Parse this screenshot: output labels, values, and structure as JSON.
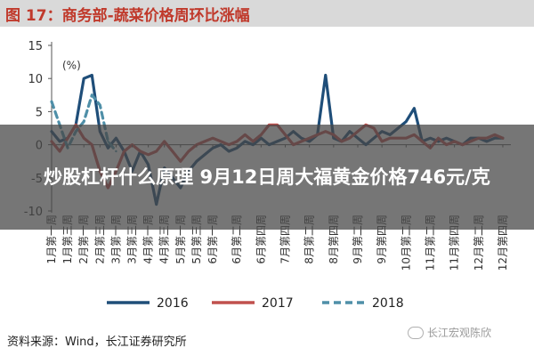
{
  "header": {
    "title": "图 17：商务部-蔬菜价格周环比涨幅"
  },
  "overlay": {
    "headline": "炒股杠杆什么原理 9月12日周大福黄金价格746元/克"
  },
  "footer": {
    "source": "资料来源：Wind，长江证券研究所",
    "watermark": "长江宏观陈欣"
  },
  "chart_data": {
    "type": "line",
    "unit_label": "(%)",
    "ylim": [
      -10,
      15
    ],
    "yticks": [
      15,
      10,
      5,
      0,
      -5,
      -10
    ],
    "ytick_labels": [
      "15",
      "10",
      "5",
      "0",
      "-5",
      "-10"
    ],
    "x": [
      0,
      1,
      2,
      3,
      4,
      5,
      6,
      7,
      8,
      9,
      10,
      11,
      12,
      13,
      14,
      15,
      16,
      17,
      18,
      19,
      20,
      21,
      22,
      23,
      24,
      25,
      26,
      27,
      28,
      29,
      30,
      31,
      32,
      33,
      34,
      35,
      36,
      37,
      38,
      39,
      40,
      41,
      42,
      43,
      44,
      45,
      46,
      47,
      48,
      49,
      50,
      51
    ],
    "xtick_labels": [
      {
        "x": 0,
        "label": "1月第一周"
      },
      {
        "x": 2,
        "label": "1月第三周"
      },
      {
        "x": 4,
        "label": "2月第一周"
      },
      {
        "x": 6,
        "label": "2月第三周"
      },
      {
        "x": 8,
        "label": "3月第一周"
      },
      {
        "x": 10,
        "label": "3月第三周"
      },
      {
        "x": 12,
        "label": "4月第一周"
      },
      {
        "x": 14,
        "label": "4月第三周"
      },
      {
        "x": 16,
        "label": "5月第一周"
      },
      {
        "x": 18,
        "label": "5月第三周"
      },
      {
        "x": 20,
        "label": "6月第一周"
      },
      {
        "x": 23,
        "label": "6月第二周"
      },
      {
        "x": 26,
        "label": "6月第四周"
      },
      {
        "x": 29,
        "label": "7月第四周"
      },
      {
        "x": 32,
        "label": "8月第二周"
      },
      {
        "x": 35,
        "label": "8月第四周"
      },
      {
        "x": 38,
        "label": "9月第二周"
      },
      {
        "x": 41,
        "label": "9月第四周"
      },
      {
        "x": 44,
        "label": "10月第二周"
      },
      {
        "x": 47,
        "label": "11月第二周"
      },
      {
        "x": 50,
        "label": "11月第四周"
      },
      {
        "x": 53,
        "label": "12月第二周"
      },
      {
        "x": 56,
        "label": "12月第四周"
      }
    ],
    "xlim": [
      0,
      57
    ],
    "series": [
      {
        "name": "2016",
        "color": "#1f4e79",
        "dash": "solid",
        "x": [
          0,
          1,
          2,
          3,
          4,
          5,
          6,
          7,
          8,
          9,
          10,
          11,
          12,
          13,
          14,
          15,
          16,
          17,
          18,
          19,
          20,
          21,
          22,
          23,
          24,
          25,
          26,
          27,
          28,
          29,
          30,
          31,
          32,
          33,
          34,
          35,
          36,
          37,
          38,
          39,
          40,
          41,
          42,
          43,
          44,
          45,
          46,
          47,
          48,
          49,
          50,
          51,
          52,
          53,
          54,
          55,
          56
        ],
        "values": [
          2.0,
          0.5,
          1.0,
          3.0,
          10.0,
          10.5,
          2.0,
          -0.5,
          1.0,
          -1.0,
          -4.0,
          -1.0,
          -3.0,
          -9.0,
          -3.5,
          -5.0,
          -6.5,
          -4.0,
          -2.5,
          -1.5,
          -0.5,
          0.0,
          -1.0,
          -0.5,
          0.5,
          0.0,
          1.0,
          0.0,
          0.5,
          1.0,
          2.0,
          1.0,
          0.5,
          1.5,
          10.5,
          1.0,
          0.5,
          2.0,
          1.0,
          0.0,
          1.0,
          2.0,
          1.5,
          2.5,
          3.5,
          5.5,
          0.5,
          1.0,
          0.5,
          1.0,
          0.5,
          0.0,
          1.0,
          1.0,
          0.5,
          1.0,
          1.0
        ]
      },
      {
        "name": "2017",
        "color": "#c0504d",
        "dash": "solid",
        "x": [
          0,
          1,
          2,
          3,
          4,
          5,
          6,
          7,
          8,
          9,
          10,
          11,
          12,
          13,
          14,
          15,
          16,
          17,
          18,
          19,
          20,
          21,
          22,
          23,
          24,
          25,
          26,
          27,
          28,
          29,
          30,
          31,
          32,
          33,
          34,
          35,
          36,
          37,
          38,
          39,
          40,
          41,
          42,
          43,
          44,
          45,
          46,
          47,
          48,
          49,
          50,
          51,
          52,
          53,
          54,
          55,
          56
        ],
        "values": [
          0.5,
          -1.0,
          1.0,
          3.0,
          1.0,
          0.0,
          -4.0,
          -6.5,
          -4.0,
          -1.0,
          0.0,
          -1.0,
          -1.5,
          -1.0,
          0.5,
          -1.0,
          -2.5,
          -1.0,
          0.0,
          0.5,
          1.0,
          0.5,
          0.0,
          0.5,
          1.5,
          0.5,
          1.5,
          3.0,
          3.0,
          1.5,
          0.0,
          0.5,
          1.0,
          1.5,
          2.0,
          1.5,
          0.5,
          1.0,
          2.0,
          3.0,
          2.5,
          0.5,
          1.0,
          1.0,
          1.0,
          1.5,
          0.5,
          -0.5,
          1.0,
          0.0,
          0.5,
          0.0,
          0.5,
          1.0,
          1.0,
          1.5,
          1.0
        ]
      },
      {
        "name": "2018",
        "color": "#4f8fa8",
        "dash": "dashed",
        "x": [
          0,
          1,
          2,
          3,
          4,
          5,
          6,
          7,
          8
        ],
        "values": [
          6.5,
          3.0,
          -0.5,
          2.0,
          3.5,
          7.5,
          6.0,
          0.5,
          -1.0
        ]
      }
    ],
    "legend": {
      "position": "bottom",
      "entries": [
        "2016",
        "2017",
        "2018"
      ]
    }
  }
}
